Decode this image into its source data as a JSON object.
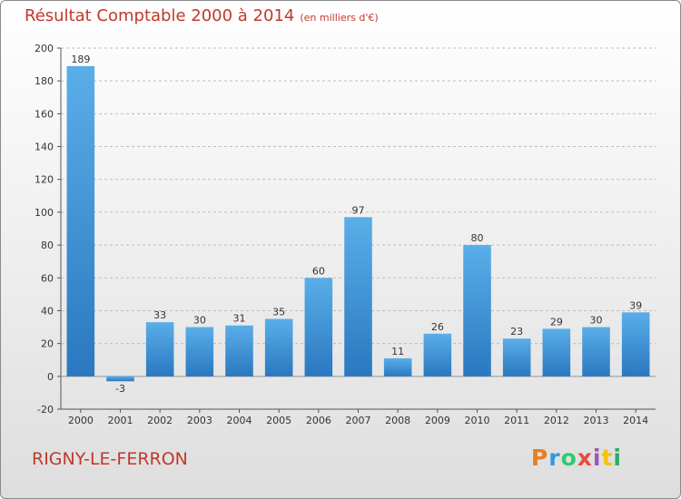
{
  "chart_data": {
    "type": "bar",
    "title": "Résultat Comptable 2000 à 2014",
    "subtitle": "(en milliers d'€)",
    "categories": [
      "2000",
      "2001",
      "2002",
      "2003",
      "2004",
      "2005",
      "2006",
      "2007",
      "2008",
      "2009",
      "2010",
      "2011",
      "2012",
      "2013",
      "2014"
    ],
    "values": [
      189,
      -3,
      33,
      30,
      31,
      35,
      60,
      97,
      11,
      26,
      80,
      23,
      29,
      30,
      39
    ],
    "y_ticks": [
      -20,
      0,
      20,
      40,
      60,
      80,
      100,
      120,
      140,
      160,
      180,
      200
    ],
    "ylim": [
      -20,
      200
    ],
    "xlabel": "",
    "ylabel": "",
    "bar_color": "#3a8fd6"
  },
  "footer": {
    "commune": "RIGNY-LE-FERRON",
    "logo_text": "Proxiti"
  },
  "colors": {
    "accent": "#c0392b",
    "logo_letters": [
      "#e67e22",
      "#3498db",
      "#2ecc71",
      "#e74c3c",
      "#9b59b6",
      "#f1c40f",
      "#27ae60"
    ]
  }
}
